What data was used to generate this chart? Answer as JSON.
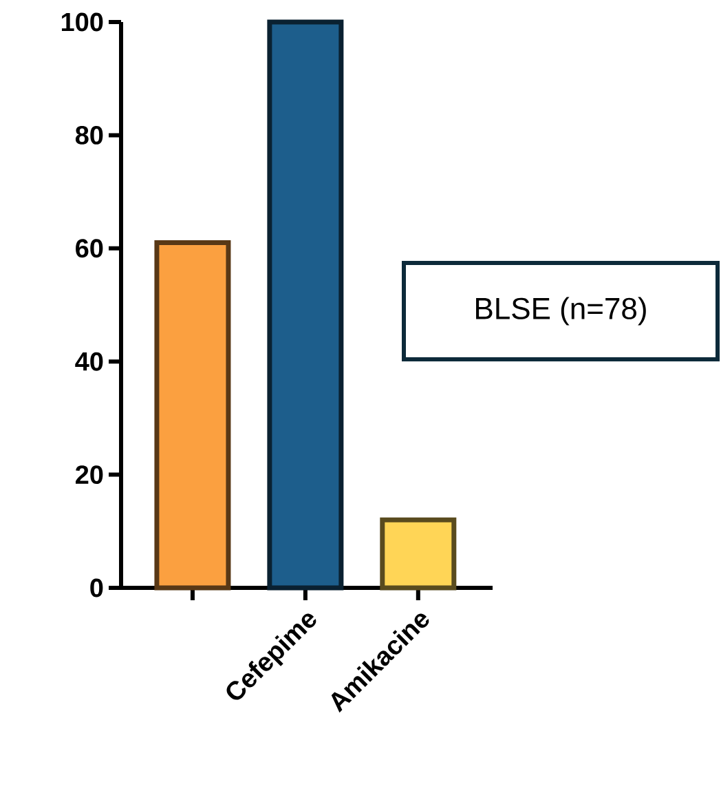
{
  "chart_data": {
    "type": "bar",
    "categories": [
      null,
      "Cefepime",
      "Amikacine"
    ],
    "values": [
      61,
      100,
      12
    ],
    "colors": [
      "#fba040",
      "#1d5e8c",
      "#ffd556"
    ],
    "ylim": [
      0,
      100
    ],
    "yticks": [
      0,
      20,
      40,
      60,
      80,
      100
    ],
    "annotations": [
      "BLSE (n=78)"
    ]
  }
}
